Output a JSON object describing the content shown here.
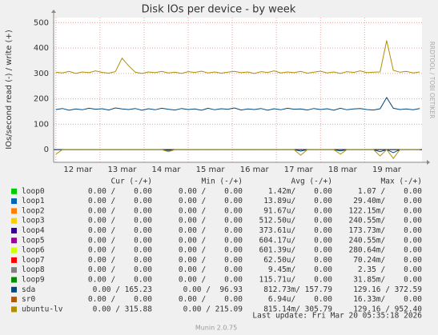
{
  "chart_data": {
    "type": "line",
    "title": "Disk IOs per device - by week",
    "y_label": "IOs/second read (-) / write (+)",
    "watermark": "RRDTOOL / TOBI OETIKER",
    "xlim": [
      11.95,
      20.3
    ],
    "xticks": [
      {
        "value": 12,
        "label": "12 mar"
      },
      {
        "value": 13,
        "label": "13 mar"
      },
      {
        "value": 14,
        "label": "14 mar"
      },
      {
        "value": 15,
        "label": "15 mar"
      },
      {
        "value": 16,
        "label": "16 mar"
      },
      {
        "value": 17,
        "label": "17 mar"
      },
      {
        "value": 18,
        "label": "18 mar"
      },
      {
        "value": 19,
        "label": "19 mar"
      }
    ],
    "ylim": [
      -50,
      520
    ],
    "yticks": [
      0,
      100,
      200,
      300,
      400,
      500
    ],
    "grid": true,
    "x": [
      12,
      12.15,
      12.3,
      12.45,
      12.6,
      12.75,
      12.9,
      13.05,
      13.2,
      13.35,
      13.5,
      13.65,
      13.8,
      13.95,
      14.1,
      14.25,
      14.4,
      14.55,
      14.7,
      14.85,
      15,
      15.15,
      15.3,
      15.45,
      15.6,
      15.75,
      15.9,
      16.05,
      16.2,
      16.35,
      16.5,
      16.65,
      16.8,
      16.95,
      17.1,
      17.25,
      17.4,
      17.55,
      17.7,
      17.85,
      18,
      18.15,
      18.3,
      18.45,
      18.6,
      18.75,
      18.9,
      19.05,
      19.2,
      19.35,
      19.5,
      19.65,
      19.8,
      19.95,
      20.1,
      20.25
    ],
    "series": [
      {
        "name": "sda",
        "color": "#00487d",
        "values": [
          158,
          162,
          155,
          160,
          157,
          163,
          159,
          161,
          156,
          164,
          160,
          158,
          162,
          155,
          161,
          157,
          163,
          159,
          156,
          162,
          158,
          160,
          155,
          163,
          157,
          161,
          159,
          164,
          156,
          160,
          158,
          162,
          155,
          161,
          157,
          163,
          159,
          160,
          156,
          162,
          158,
          161,
          155,
          163,
          157,
          160,
          162,
          158,
          156,
          161,
          205,
          163,
          158,
          160,
          157,
          162
        ],
        "read": [
          0,
          0,
          0,
          0,
          0,
          0,
          0,
          0,
          0,
          0,
          0,
          0,
          0,
          0,
          0,
          0,
          0,
          -3,
          0,
          0,
          0,
          0,
          0,
          0,
          0,
          0,
          0,
          0,
          0,
          0,
          0,
          0,
          0,
          0,
          0,
          0,
          0,
          -6,
          0,
          0,
          0,
          0,
          0,
          -5,
          0,
          0,
          0,
          0,
          0,
          -8,
          0,
          -12,
          0,
          0,
          0,
          0
        ]
      },
      {
        "name": "ubuntu-lv",
        "color": "#b38f00",
        "values": [
          305,
          302,
          308,
          300,
          306,
          303,
          310,
          304,
          301,
          307,
          360,
          330,
          305,
          300,
          306,
          303,
          308,
          302,
          305,
          300,
          307,
          304,
          309,
          302,
          306,
          301,
          305,
          308,
          303,
          306,
          300,
          307,
          304,
          310,
          302,
          306,
          303,
          308,
          301,
          305,
          309,
          302,
          306,
          300,
          307,
          304,
          310,
          303,
          305,
          306,
          430,
          312,
          305,
          308,
          302,
          306
        ],
        "read": [
          -18,
          0,
          0,
          0,
          0,
          0,
          0,
          0,
          0,
          0,
          0,
          0,
          0,
          0,
          0,
          0,
          0,
          -8,
          0,
          0,
          0,
          0,
          0,
          0,
          0,
          0,
          0,
          0,
          0,
          0,
          0,
          0,
          0,
          0,
          0,
          0,
          0,
          -22,
          0,
          0,
          0,
          0,
          0,
          -18,
          0,
          0,
          0,
          0,
          0,
          -25,
          0,
          -35,
          0,
          0,
          0,
          0
        ]
      }
    ],
    "legend": {
      "headers": [
        "Cur (-/+)",
        "Min (-/+)",
        "Avg (-/+)",
        "Max (-/+)"
      ],
      "rows": [
        {
          "name": "loop0",
          "color": "#00cc00",
          "cur": "0.00 /    0.00",
          "min": "0.00 /    0.00",
          "avg": "1.42m/    0.00",
          "max": "1.07 /    0.00"
        },
        {
          "name": "loop1",
          "color": "#0066b3",
          "cur": "0.00 /    0.00",
          "min": "0.00 /    0.00",
          "avg": "13.89u/    0.00",
          "max": "29.40m/    0.00"
        },
        {
          "name": "loop2",
          "color": "#ff8000",
          "cur": "0.00 /    0.00",
          "min": "0.00 /    0.00",
          "avg": "91.67u/    0.00",
          "max": "122.15m/    0.00"
        },
        {
          "name": "loop3",
          "color": "#ffcc00",
          "cur": "0.00 /    0.00",
          "min": "0.00 /    0.00",
          "avg": "512.50u/    0.00",
          "max": "240.55m/    0.00"
        },
        {
          "name": "loop4",
          "color": "#330099",
          "cur": "0.00 /    0.00",
          "min": "0.00 /    0.00",
          "avg": "373.61u/    0.00",
          "max": "173.73m/    0.00"
        },
        {
          "name": "loop5",
          "color": "#990099",
          "cur": "0.00 /    0.00",
          "min": "0.00 /    0.00",
          "avg": "604.17u/    0.00",
          "max": "240.55m/    0.00"
        },
        {
          "name": "loop6",
          "color": "#ccff00",
          "cur": "0.00 /    0.00",
          "min": "0.00 /    0.00",
          "avg": "601.39u/    0.00",
          "max": "280.64m/    0.00"
        },
        {
          "name": "loop7",
          "color": "#ff0000",
          "cur": "0.00 /    0.00",
          "min": "0.00 /    0.00",
          "avg": "62.50u/    0.00",
          "max": "70.24m/    0.00"
        },
        {
          "name": "loop8",
          "color": "#808080",
          "cur": "0.00 /    0.00",
          "min": "0.00 /    0.00",
          "avg": "9.45m/    0.00",
          "max": "2.35 /    0.00"
        },
        {
          "name": "loop9",
          "color": "#008f00",
          "cur": "0.00 /    0.00",
          "min": "0.00 /    0.00",
          "avg": "115.71u/    0.00",
          "max": "31.85m/    0.00"
        },
        {
          "name": "sda",
          "color": "#00487d",
          "cur": "0.00 / 165.23",
          "min": "0.00 /  96.93",
          "avg": "812.73m/ 157.79",
          "max": "129.16 / 372.59"
        },
        {
          "name": "sr0",
          "color": "#b35a00",
          "cur": "0.00 /    0.00",
          "min": "0.00 /    0.00",
          "avg": "6.94u/    0.00",
          "max": "16.33m/    0.00"
        },
        {
          "name": "ubuntu-lv",
          "color": "#b38f00",
          "cur": "0.00 / 315.88",
          "min": "0.00 / 215.09",
          "avg": "815.14m/ 305.79",
          "max": "129.16 / 952.40"
        }
      ]
    },
    "last_update": "Last update: Fri Mar 20 05:35:18 2026",
    "footer": "Munin 2.0.75"
  }
}
